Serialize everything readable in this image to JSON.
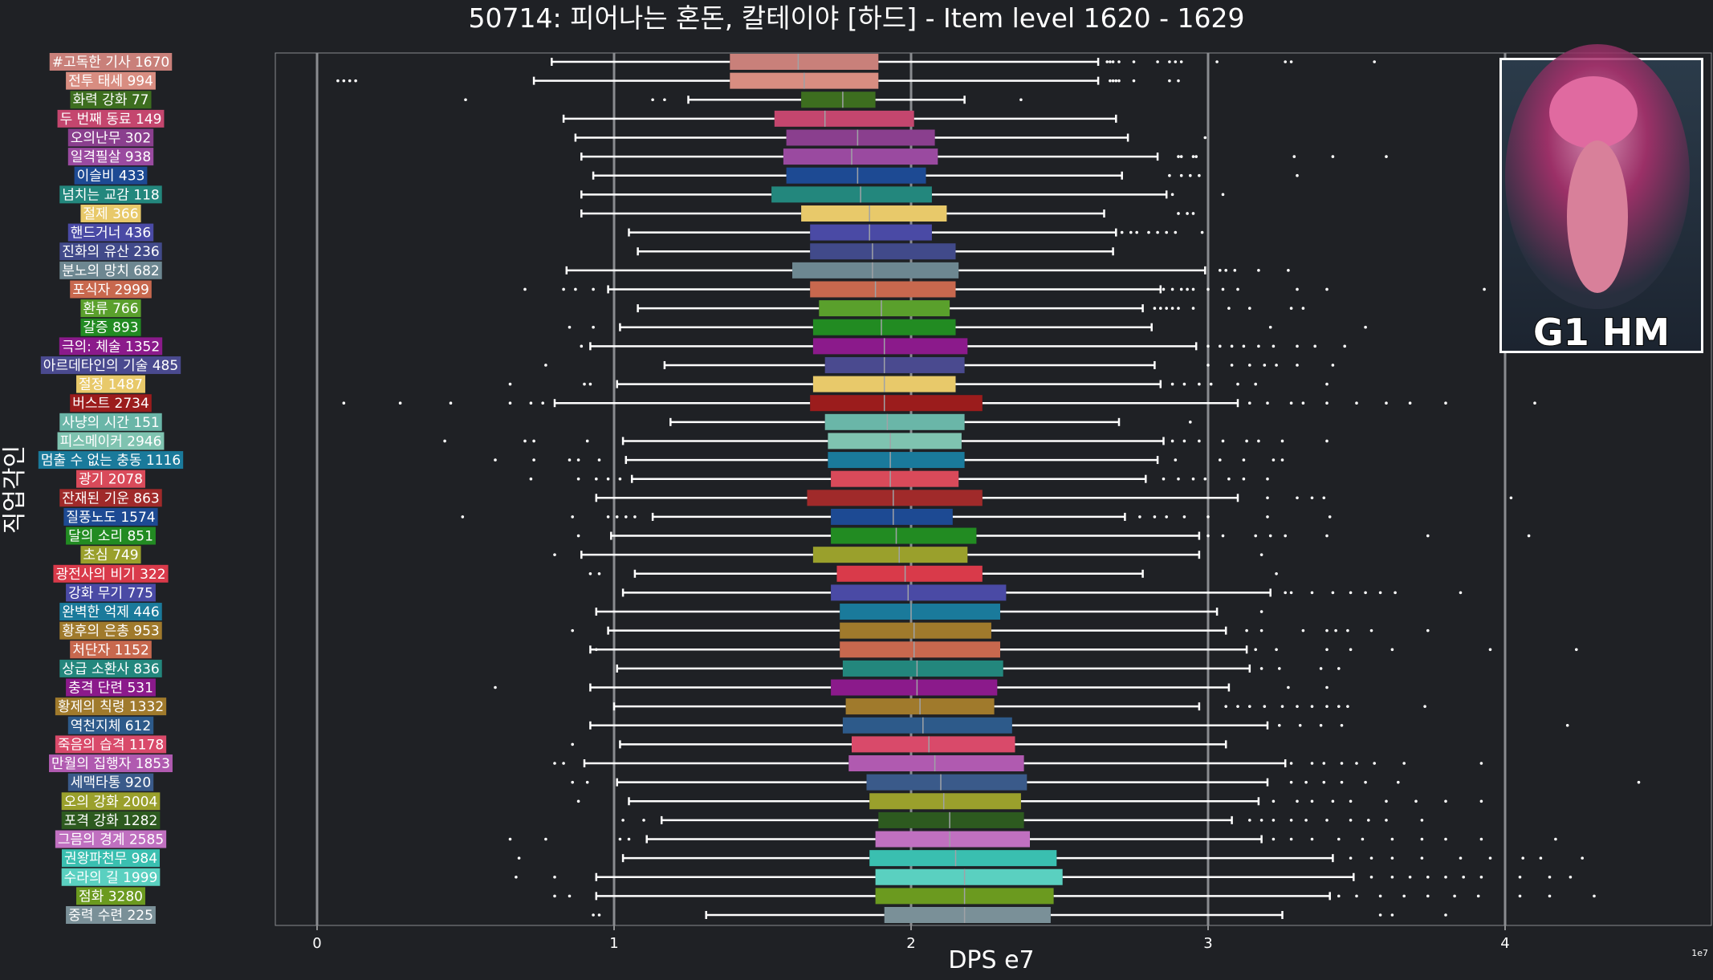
{
  "chart_data": {
    "type": "box",
    "orientation": "horizontal",
    "title": "50714: 피어나는 혼돈, 칼테이야 [하드] - Item level 1620 - 1629",
    "xlabel": "DPS e7",
    "ylabel": "직업각인",
    "x_offset_label": "1e7",
    "xlim": [
      -0.14,
      4.62
    ],
    "xticks": [
      0,
      1,
      2,
      3,
      4
    ],
    "grid": true,
    "badge": "G1 HM",
    "series": [
      {
        "label": "#고독한 기사 1670",
        "color": "#c9807a",
        "q1": 1.39,
        "median": 1.62,
        "q3": 1.89,
        "wl": 0.79,
        "wh": 2.63,
        "out": [
          2.66,
          2.67,
          2.68,
          2.7,
          2.75,
          2.83,
          2.87,
          2.89,
          2.91,
          3.03,
          3.26,
          3.28,
          3.56
        ]
      },
      {
        "label": "전투 태세 994",
        "color": "#d88d81",
        "q1": 1.39,
        "median": 1.64,
        "q3": 1.89,
        "wl": 0.73,
        "wh": 2.63,
        "out": [
          0.07,
          0.09,
          0.11,
          0.13,
          2.67,
          2.68,
          2.69,
          2.7,
          2.75,
          2.87,
          2.9
        ]
      },
      {
        "label": "화력 강화 77",
        "color": "#3d6e1f",
        "q1": 1.63,
        "median": 1.77,
        "q3": 1.88,
        "wl": 1.25,
        "wh": 2.18,
        "out": [
          0.5,
          1.13,
          1.17,
          2.37
        ]
      },
      {
        "label": "두 번째 동료 149",
        "color": "#c4466e",
        "q1": 1.54,
        "median": 1.71,
        "q3": 2.01,
        "wl": 0.83,
        "wh": 2.69,
        "out": []
      },
      {
        "label": "오의난무 302",
        "color": "#8a3f8e",
        "q1": 1.58,
        "median": 1.82,
        "q3": 2.08,
        "wl": 0.87,
        "wh": 2.73,
        "out": [
          2.99
        ]
      },
      {
        "label": "일격필살 938",
        "color": "#9a4aa0",
        "q1": 1.57,
        "median": 1.8,
        "q3": 2.09,
        "wl": 0.89,
        "wh": 2.83,
        "out": [
          2.9,
          2.91,
          2.95,
          2.96,
          3.29,
          3.42,
          3.6
        ]
      },
      {
        "label": "이슬비 433",
        "color": "#1d4a93",
        "q1": 1.58,
        "median": 1.82,
        "q3": 2.05,
        "wl": 0.93,
        "wh": 2.71,
        "out": [
          2.87,
          2.91,
          2.94,
          2.97,
          3.3
        ]
      },
      {
        "label": "넘치는 교감 118",
        "color": "#23877d",
        "q1": 1.53,
        "median": 1.83,
        "q3": 2.07,
        "wl": 0.89,
        "wh": 2.86,
        "out": [
          2.88,
          3.05
        ]
      },
      {
        "label": "절제 366",
        "color": "#e8c96a",
        "q1": 1.63,
        "median": 1.86,
        "q3": 2.12,
        "wl": 0.89,
        "wh": 2.65,
        "out": [
          2.9,
          2.93,
          2.95
        ]
      },
      {
        "label": "핸드거너 436",
        "color": "#4a4aa5",
        "q1": 1.66,
        "median": 1.86,
        "q3": 2.07,
        "wl": 1.05,
        "wh": 2.69,
        "out": [
          2.71,
          2.74,
          2.76,
          2.8,
          2.83,
          2.86,
          2.89,
          2.98
        ]
      },
      {
        "label": "진화의 유산 236",
        "color": "#414a8a",
        "q1": 1.66,
        "median": 1.87,
        "q3": 2.15,
        "wl": 1.08,
        "wh": 2.68,
        "out": []
      },
      {
        "label": "분노의 망치 682",
        "color": "#6d8791",
        "q1": 1.6,
        "median": 1.87,
        "q3": 2.16,
        "wl": 0.84,
        "wh": 2.99,
        "out": [
          3.04,
          3.06,
          3.09,
          3.17,
          3.27
        ]
      },
      {
        "label": "포식자 2999",
        "color": "#c8684e",
        "q1": 1.66,
        "median": 1.88,
        "q3": 2.15,
        "wl": 0.98,
        "wh": 2.84,
        "out": [
          0.7,
          0.83,
          0.87,
          0.93,
          2.85,
          2.88,
          2.91,
          2.93,
          2.95,
          3.0,
          3.05,
          3.1,
          3.3,
          3.4,
          3.93
        ]
      },
      {
        "label": "환류 766",
        "color": "#5aa02c",
        "q1": 1.69,
        "median": 1.9,
        "q3": 2.13,
        "wl": 1.08,
        "wh": 2.78,
        "out": [
          2.82,
          2.84,
          2.86,
          2.88,
          2.9,
          2.95,
          3.07,
          3.14,
          3.28,
          3.32
        ]
      },
      {
        "label": "갈증 893",
        "color": "#228b22",
        "q1": 1.67,
        "median": 1.9,
        "q3": 2.15,
        "wl": 1.02,
        "wh": 2.81,
        "out": [
          0.85,
          0.93,
          3.21,
          3.53
        ]
      },
      {
        "label": "극의: 체술 1352",
        "color": "#8b1a8b",
        "q1": 1.67,
        "median": 1.91,
        "q3": 2.19,
        "wl": 0.92,
        "wh": 2.96,
        "out": [
          0.89,
          3.0,
          3.04,
          3.08,
          3.12,
          3.17,
          3.22,
          3.3,
          3.36,
          3.46
        ]
      },
      {
        "label": "아르데타인의 기술 485",
        "color": "#4a4a8f",
        "q1": 1.71,
        "median": 1.91,
        "q3": 2.18,
        "wl": 1.17,
        "wh": 2.82,
        "out": [
          0.77,
          3.0,
          3.08,
          3.14,
          3.19,
          3.23,
          3.3,
          3.42
        ]
      },
      {
        "label": "절정 1487",
        "color": "#e8c96a",
        "q1": 1.67,
        "median": 1.91,
        "q3": 2.15,
        "wl": 1.01,
        "wh": 2.84,
        "out": [
          0.65,
          0.9,
          0.92,
          2.88,
          2.92,
          2.97,
          3.01,
          3.1,
          3.16,
          3.4
        ]
      },
      {
        "label": "버스트 2734",
        "color": "#9b1c1c",
        "q1": 1.66,
        "median": 1.91,
        "q3": 2.24,
        "wl": 0.8,
        "wh": 3.1,
        "out": [
          0.09,
          0.28,
          0.45,
          0.65,
          0.72,
          0.76,
          3.14,
          3.2,
          3.28,
          3.32,
          3.4,
          3.5,
          3.6,
          3.68,
          3.8,
          4.1
        ]
      },
      {
        "label": "사냥의 시간 151",
        "color": "#6ab6a8",
        "q1": 1.71,
        "median": 1.92,
        "q3": 2.18,
        "wl": 1.19,
        "wh": 2.7,
        "out": [
          2.94
        ]
      },
      {
        "label": "피스메이커 2946",
        "color": "#7fc3b0",
        "q1": 1.72,
        "median": 1.93,
        "q3": 2.17,
        "wl": 1.03,
        "wh": 2.85,
        "out": [
          0.43,
          0.7,
          0.73,
          0.91,
          2.88,
          2.92,
          2.97,
          3.05,
          3.13,
          3.17,
          3.25,
          3.4
        ]
      },
      {
        "label": "멈출 수 없는 충동 1116",
        "color": "#1a7a9b",
        "q1": 1.72,
        "median": 1.93,
        "q3": 2.18,
        "wl": 1.04,
        "wh": 2.83,
        "out": [
          0.6,
          0.73,
          0.85,
          0.88,
          0.95,
          2.89,
          3.04,
          3.12,
          3.22,
          3.25
        ]
      },
      {
        "label": "광기 2078",
        "color": "#d94a5a",
        "q1": 1.73,
        "median": 1.93,
        "q3": 2.16,
        "wl": 1.06,
        "wh": 2.79,
        "out": [
          0.72,
          0.88,
          0.94,
          0.98,
          1.02,
          2.85,
          2.9,
          2.95,
          2.99,
          3.07,
          3.12,
          3.2
        ]
      },
      {
        "label": "잔재된 기운 863",
        "color": "#a02a2a",
        "q1": 1.65,
        "median": 1.94,
        "q3": 2.24,
        "wl": 0.94,
        "wh": 3.1,
        "out": [
          3.2,
          3.3,
          3.35,
          3.39,
          4.02
        ]
      },
      {
        "label": "질풍노도 1574",
        "color": "#1d4a93",
        "q1": 1.73,
        "median": 1.94,
        "q3": 2.14,
        "wl": 1.13,
        "wh": 2.72,
        "out": [
          0.49,
          0.86,
          0.98,
          1.01,
          1.04,
          1.07,
          2.77,
          2.82,
          2.86,
          2.92,
          3.0,
          3.2,
          3.41
        ]
      },
      {
        "label": "달의 소리 851",
        "color": "#228b22",
        "q1": 1.73,
        "median": 1.95,
        "q3": 2.22,
        "wl": 0.99,
        "wh": 2.97,
        "out": [
          0.88,
          3.0,
          3.05,
          3.16,
          3.21,
          3.26,
          3.4,
          3.74,
          4.08
        ]
      },
      {
        "label": "초심 749",
        "color": "#9aa02c",
        "q1": 1.67,
        "median": 1.96,
        "q3": 2.19,
        "wl": 0.89,
        "wh": 2.97,
        "out": [
          0.8,
          3.18
        ]
      },
      {
        "label": "광전사의 비기 322",
        "color": "#d93a4a",
        "q1": 1.75,
        "median": 1.98,
        "q3": 2.24,
        "wl": 1.07,
        "wh": 2.78,
        "out": [
          0.92,
          0.95,
          3.23
        ]
      },
      {
        "label": "강화 무기 775",
        "color": "#4a4aa5",
        "q1": 1.73,
        "median": 1.99,
        "q3": 2.32,
        "wl": 1.03,
        "wh": 3.21,
        "out": [
          3.26,
          3.28,
          3.35,
          3.42,
          3.48,
          3.53,
          3.58,
          3.63,
          3.85
        ]
      },
      {
        "label": "완벽한 억제 446",
        "color": "#1a7a9b",
        "q1": 1.76,
        "median": 2.0,
        "q3": 2.3,
        "wl": 0.94,
        "wh": 3.03,
        "out": [
          3.18
        ]
      },
      {
        "label": "황후의 은총 953",
        "color": "#a07a2c",
        "q1": 1.76,
        "median": 2.01,
        "q3": 2.27,
        "wl": 0.98,
        "wh": 3.06,
        "out": [
          0.86,
          3.13,
          3.18,
          3.32,
          3.4,
          3.43,
          3.47,
          3.55,
          3.74
        ]
      },
      {
        "label": "처단자 1152",
        "color": "#c8684e",
        "q1": 1.76,
        "median": 2.01,
        "q3": 2.3,
        "wl": 0.92,
        "wh": 3.13,
        "out": [
          0.94,
          3.16,
          3.23,
          3.4,
          3.48,
          3.62,
          3.95,
          4.24
        ]
      },
      {
        "label": "상급 소환사 836",
        "color": "#23877d",
        "q1": 1.77,
        "median": 2.02,
        "q3": 2.31,
        "wl": 1.01,
        "wh": 3.14,
        "out": [
          3.18,
          3.24,
          3.38,
          3.44
        ]
      },
      {
        "label": "충격 단련 531",
        "color": "#8b1a8b",
        "q1": 1.73,
        "median": 2.02,
        "q3": 2.29,
        "wl": 0.92,
        "wh": 3.07,
        "out": [
          0.6,
          3.27,
          3.4
        ]
      },
      {
        "label": "황제의 칙령 1332",
        "color": "#a07a2c",
        "q1": 1.78,
        "median": 2.03,
        "q3": 2.28,
        "wl": 1.0,
        "wh": 2.97,
        "out": [
          3.06,
          3.1,
          3.14,
          3.19,
          3.25,
          3.3,
          3.35,
          3.4,
          3.44,
          3.47,
          3.73
        ]
      },
      {
        "label": "역천지체 612",
        "color": "#2d5a8a",
        "q1": 1.77,
        "median": 2.04,
        "q3": 2.34,
        "wl": 0.92,
        "wh": 3.2,
        "out": [
          3.24,
          3.31,
          3.38,
          3.45,
          4.21
        ]
      },
      {
        "label": "죽음의 습격 1178",
        "color": "#d94a6a",
        "q1": 1.8,
        "median": 2.06,
        "q3": 2.35,
        "wl": 1.02,
        "wh": 3.06,
        "out": [
          0.86
        ]
      },
      {
        "label": "만월의 집행자 1853",
        "color": "#b05ab0",
        "q1": 1.79,
        "median": 2.08,
        "q3": 2.38,
        "wl": 0.9,
        "wh": 3.26,
        "out": [
          0.8,
          0.83,
          3.28,
          3.35,
          3.39,
          3.45,
          3.5,
          3.56,
          3.66,
          3.92
        ]
      },
      {
        "label": "세맥타통 920",
        "color": "#3a5a8a",
        "q1": 1.85,
        "median": 2.1,
        "q3": 2.39,
        "wl": 1.01,
        "wh": 3.2,
        "out": [
          0.86,
          0.91,
          3.28,
          3.33,
          3.39,
          3.45,
          3.53,
          3.64,
          4.45
        ]
      },
      {
        "label": "오의 강화 2004",
        "color": "#9aa02c",
        "q1": 1.86,
        "median": 2.11,
        "q3": 2.37,
        "wl": 1.05,
        "wh": 3.17,
        "out": [
          0.88,
          3.22,
          3.3,
          3.35,
          3.42,
          3.48,
          3.6,
          3.7,
          3.8,
          3.92
        ]
      },
      {
        "label": "포격 강화 1282",
        "color": "#2d5a1f",
        "q1": 1.89,
        "median": 2.13,
        "q3": 2.38,
        "wl": 1.16,
        "wh": 3.08,
        "out": [
          1.03,
          1.1,
          3.14,
          3.18,
          3.22,
          3.28,
          3.33,
          3.4,
          3.48,
          3.54,
          3.6,
          3.72
        ]
      },
      {
        "label": "그믐의 경계 2585",
        "color": "#c070c0",
        "q1": 1.88,
        "median": 2.13,
        "q3": 2.4,
        "wl": 1.11,
        "wh": 3.18,
        "out": [
          0.65,
          0.77,
          1.02,
          1.05,
          3.22,
          3.28,
          3.35,
          3.44,
          3.52,
          3.62,
          3.72,
          3.8,
          3.92,
          4.17
        ]
      },
      {
        "label": "권왕파천무 984",
        "color": "#3abfb0",
        "q1": 1.86,
        "median": 2.15,
        "q3": 2.49,
        "wl": 1.03,
        "wh": 3.42,
        "out": [
          0.68,
          3.48,
          3.55,
          3.62,
          3.72,
          3.85,
          3.95,
          4.06,
          4.12,
          4.26
        ]
      },
      {
        "label": "수라의 길 1999",
        "color": "#5ad0c0",
        "q1": 1.88,
        "median": 2.18,
        "q3": 2.51,
        "wl": 0.94,
        "wh": 3.49,
        "out": [
          0.67,
          0.8,
          3.55,
          3.62,
          3.68,
          3.74,
          3.8,
          3.86,
          3.92,
          4.05,
          4.15,
          4.22
        ]
      },
      {
        "label": "점화 3280",
        "color": "#6b9a1f",
        "q1": 1.88,
        "median": 2.18,
        "q3": 2.48,
        "wl": 0.94,
        "wh": 3.41,
        "out": [
          0.8,
          0.85,
          3.44,
          3.5,
          3.58,
          3.66,
          3.74,
          3.83,
          3.91,
          4.05,
          4.15,
          4.3
        ]
      },
      {
        "label": "중력 수련 225",
        "color": "#7a9098",
        "q1": 1.91,
        "median": 2.18,
        "q3": 2.47,
        "wl": 1.31,
        "wh": 3.25,
        "out": [
          0.93,
          0.95,
          3.58,
          3.62,
          3.8
        ]
      }
    ]
  }
}
